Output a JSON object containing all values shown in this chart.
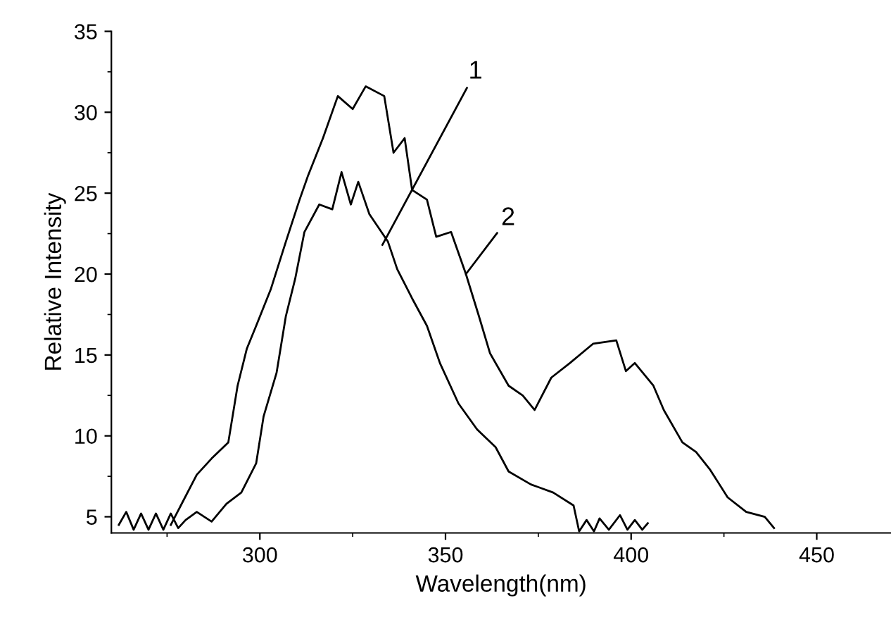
{
  "chart_data": {
    "type": "line",
    "xlabel": "Wavelength(nm)",
    "ylabel": "Relative Intensity",
    "xlim": [
      260,
      470
    ],
    "ylim": [
      4,
      35
    ],
    "xticks": [
      300,
      350,
      400,
      450
    ],
    "yticks": [
      5,
      10,
      15,
      20,
      25,
      30,
      35
    ],
    "grid": false,
    "legend": false,
    "marker": "none",
    "line_style": "solid",
    "series": [
      {
        "color": "#000000",
        "x": [
          262,
          264,
          266,
          268,
          270,
          272,
          274,
          276,
          278,
          280,
          283,
          287,
          291,
          295,
          299,
          301,
          304.5,
          307,
          309.5,
          312,
          316,
          319.5,
          322,
          324.5,
          326.5,
          329.5,
          334.5,
          337,
          341,
          345,
          348.5,
          353.5,
          358.5,
          363.5,
          367,
          373,
          379,
          384.5,
          386,
          388,
          390,
          391.5,
          394,
          397,
          399,
          401,
          403,
          404.5
        ],
        "values": [
          4.5,
          5.3,
          4.2,
          5.2,
          4.2,
          5.2,
          4.2,
          5.2,
          4.3,
          4.8,
          5.3,
          4.7,
          5.8,
          6.5,
          8.3,
          11.2,
          13.9,
          17.4,
          19.7,
          22.6,
          24.3,
          24.0,
          26.3,
          24.3,
          25.7,
          23.7,
          22.0,
          20.3,
          18.5,
          16.8,
          14.5,
          12.0,
          10.4,
          9.3,
          7.8,
          7.0,
          6.5,
          5.7,
          4.1,
          4.8,
          4.1,
          4.9,
          4.2,
          5.1,
          4.2,
          4.8,
          4.2,
          4.6
        ]
      },
      {
        "color": "#000000",
        "x": [
          276,
          283,
          287,
          291.5,
          294,
          296.5,
          299,
          303,
          307,
          310.7,
          313,
          317,
          321,
          325,
          328.5,
          333.5,
          336,
          339,
          341,
          345,
          347.5,
          351.5,
          355.5,
          359,
          362,
          367,
          370.8,
          374,
          378.5,
          383.5,
          389.8,
          396,
          398.6,
          401,
          406,
          408.8,
          413.8,
          417.5,
          421.3,
          426,
          431,
          436,
          438.5
        ],
        "values": [
          4.5,
          7.6,
          8.6,
          9.6,
          13.1,
          15.4,
          16.8,
          19.1,
          22.0,
          24.6,
          26.1,
          28.4,
          31.0,
          30.2,
          31.6,
          31.0,
          27.5,
          28.4,
          25.2,
          24.6,
          22.3,
          22.6,
          20.0,
          17.4,
          15.1,
          13.1,
          12.5,
          11.6,
          13.6,
          14.5,
          15.7,
          15.9,
          14.0,
          14.5,
          13.1,
          11.6,
          9.6,
          9.0,
          7.9,
          6.2,
          5.3,
          5.0,
          4.3
        ]
      }
    ],
    "annotations": [
      {
        "text": "1",
        "x": 333,
        "y": 21.8
      },
      {
        "text": "2",
        "x": 355.5,
        "y": 20.0
      }
    ]
  }
}
